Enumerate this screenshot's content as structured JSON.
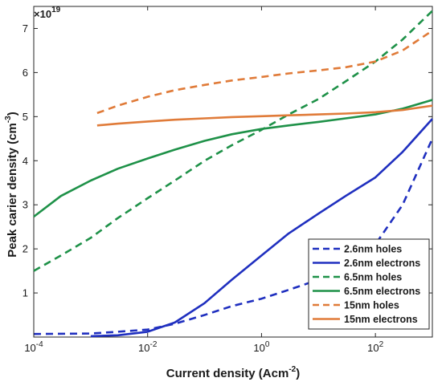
{
  "chart_data": {
    "type": "line",
    "xlabel": "Current density (Acm",
    "xlabel_sup": "-2",
    "xlabel_close": ")",
    "ylabel": "Peak carier density (cm",
    "ylabel_sup": "-3",
    "ylabel_close": ")",
    "y_multiplier_base": "×10",
    "y_multiplier_exp": "19",
    "x_scale": "log",
    "xlim": [
      0.0001,
      1000
    ],
    "ylim": [
      0,
      7.5
    ],
    "grid": false,
    "legend_position": "bottom-right",
    "x_ticks": [
      {
        "value": 0.0001,
        "base": "10",
        "exp": "-4"
      },
      {
        "value": 0.01,
        "base": "10",
        "exp": "-2"
      },
      {
        "value": 1,
        "base": "10",
        "exp": "0"
      },
      {
        "value": 100,
        "base": "10",
        "exp": "2"
      }
    ],
    "y_ticks": [
      {
        "value": 1,
        "label": "1"
      },
      {
        "value": 2,
        "label": "2"
      },
      {
        "value": 3,
        "label": "3"
      },
      {
        "value": 4,
        "label": "4"
      },
      {
        "value": 5,
        "label": "5"
      },
      {
        "value": 6,
        "label": "6"
      },
      {
        "value": 7,
        "label": "7"
      }
    ],
    "series": [
      {
        "name": "2.6nm holes",
        "color": "#1f2fbf",
        "dash": "dashed",
        "x": [
          0.0001,
          0.001,
          0.003,
          0.01,
          0.03,
          0.1,
          0.3,
          1,
          3,
          10,
          30,
          100,
          300,
          1000
        ],
        "y": [
          0.07,
          0.08,
          0.12,
          0.17,
          0.3,
          0.5,
          0.7,
          0.87,
          1.07,
          1.3,
          1.6,
          2.1,
          3.0,
          4.5
        ]
      },
      {
        "name": "2.6nm electrons",
        "color": "#1f2fbf",
        "dash": "solid",
        "x": [
          0.001,
          0.003,
          0.01,
          0.03,
          0.1,
          0.3,
          1,
          3,
          10,
          30,
          100,
          300,
          1000
        ],
        "y": [
          0.02,
          0.04,
          0.12,
          0.33,
          0.77,
          1.3,
          1.85,
          2.35,
          2.8,
          3.2,
          3.62,
          4.2,
          4.95
        ]
      },
      {
        "name": "6.5nm holes",
        "color": "#1e9148",
        "dash": "dashed",
        "x": [
          0.0001,
          0.0003,
          0.001,
          0.003,
          0.01,
          0.03,
          0.1,
          0.3,
          1,
          3,
          10,
          30,
          100,
          300,
          1000
        ],
        "y": [
          1.5,
          1.85,
          2.25,
          2.7,
          3.15,
          3.55,
          4.0,
          4.35,
          4.7,
          5.05,
          5.4,
          5.8,
          6.25,
          6.75,
          7.4
        ]
      },
      {
        "name": "6.5nm electrons",
        "color": "#1e9148",
        "dash": "solid",
        "x": [
          0.0001,
          0.0003,
          0.001,
          0.003,
          0.01,
          0.03,
          0.1,
          0.3,
          1,
          3,
          10,
          30,
          100,
          300,
          1000
        ],
        "y": [
          2.73,
          3.2,
          3.55,
          3.82,
          4.05,
          4.25,
          4.45,
          4.6,
          4.72,
          4.8,
          4.88,
          4.96,
          5.05,
          5.18,
          5.38
        ]
      },
      {
        "name": "15nm holes",
        "color": "#e07b39",
        "dash": "dashed",
        "x": [
          0.0013,
          0.003,
          0.01,
          0.03,
          0.1,
          0.3,
          1,
          3,
          10,
          30,
          100,
          300,
          1000
        ],
        "y": [
          5.08,
          5.25,
          5.45,
          5.6,
          5.72,
          5.82,
          5.9,
          5.98,
          6.05,
          6.12,
          6.25,
          6.5,
          6.95
        ]
      },
      {
        "name": "15nm electrons",
        "color": "#e07b39",
        "dash": "solid",
        "x": [
          0.0013,
          0.003,
          0.01,
          0.03,
          0.1,
          0.3,
          1,
          3,
          10,
          30,
          100,
          300,
          1000
        ],
        "y": [
          4.8,
          4.84,
          4.89,
          4.93,
          4.96,
          4.99,
          5.01,
          5.03,
          5.05,
          5.07,
          5.1,
          5.15,
          5.25
        ]
      }
    ]
  }
}
